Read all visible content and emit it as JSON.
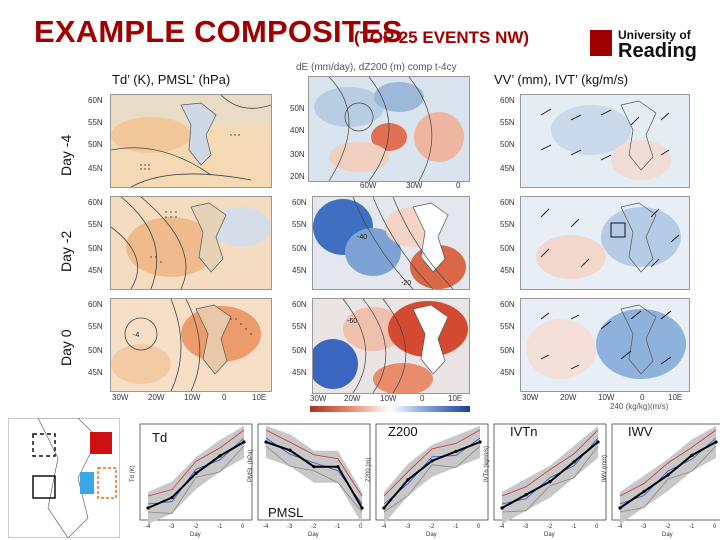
{
  "header": {
    "title": "EXAMPLE COMPOSITES",
    "subtitle": "(TOP 25 EVENTS NW)",
    "logo_line1": "University of",
    "logo_line2": "Reading"
  },
  "panels": {
    "left_label": "Td’ (K), PMSL’ (hPa)",
    "middle_label": "dE (mm/day), dZ200 (m) comp  t-4cy",
    "right_label": "VV’ (mm), IVT’ (kg/m/s)",
    "vector_scale": "240 (kg/kg)(m/s)"
  },
  "rows": [
    "Day -4",
    "Day -2",
    "Day 0"
  ],
  "lat_ticks": [
    "60N",
    "55N",
    "50N",
    "45N"
  ],
  "lon_ticks_left": [
    "30W",
    "20W",
    "10W",
    "0",
    "10E"
  ],
  "lon_ticks_mid_top": [
    "60W",
    "30W",
    "0"
  ],
  "lon_ticks_mid": [
    "30W",
    "20W",
    "10W",
    "0",
    "10E"
  ],
  "mid_lat_ticks": [
    "50N",
    "40N",
    "30N",
    "20N"
  ],
  "contour_labels": [
    "-4",
    "-40",
    "-20",
    "-60"
  ],
  "charts": [
    {
      "label": "Td",
      "ylab": "Td (K)",
      "xlab": "Day"
    },
    {
      "label": "PMSL",
      "ylab": "PMSL (hPa)",
      "xlab": "Day"
    },
    {
      "label": "Z200",
      "ylab": "Z200 (m)",
      "xlab": "Day"
    },
    {
      "label": "IVTn",
      "ylab": "IVTn (kg/m/s)",
      "xlab": "Day"
    },
    {
      "label": "IWV",
      "ylab": "IWV (mm)",
      "xlab": "Day"
    }
  ],
  "x_ticks": [
    "-4",
    "-3",
    "-2",
    "-1",
    "0"
  ],
  "chart_data": {
    "type": "line",
    "x": [
      -4,
      -3,
      -2,
      -1,
      0
    ],
    "series": [
      {
        "name": "Td",
        "values": [
          0.2,
          0.5,
          1.2,
          1.7,
          2.1
        ]
      },
      {
        "name": "PMSL",
        "values": [
          2,
          1.5,
          0.5,
          0.5,
          -2
        ]
      },
      {
        "name": "Z200",
        "values": [
          10,
          25,
          35,
          40,
          45
        ]
      },
      {
        "name": "IVTn",
        "values": [
          0,
          20,
          40,
          70,
          100
        ]
      },
      {
        "name": "IWV",
        "values": [
          0,
          0.5,
          1.0,
          1.6,
          2.0
        ]
      }
    ]
  }
}
